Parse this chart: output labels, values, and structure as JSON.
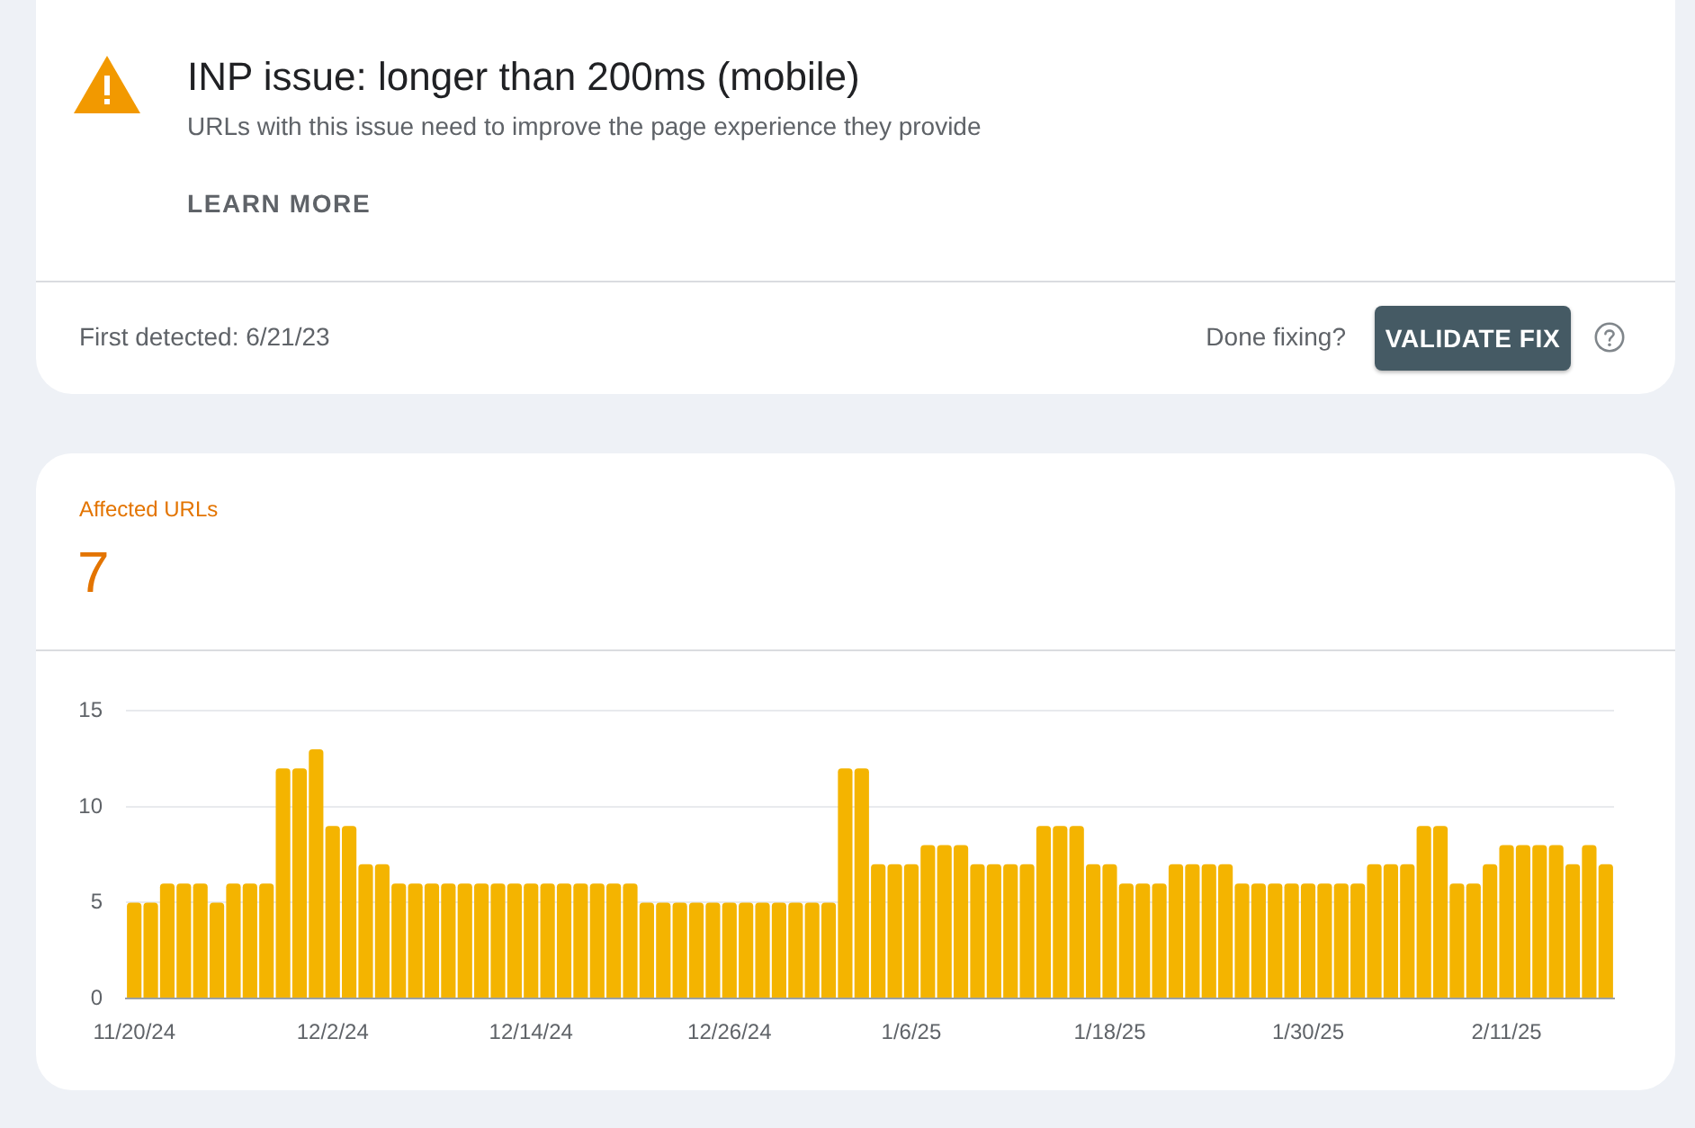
{
  "chart_data": {
    "type": "bar",
    "title": "INP issue: longer than 200ms (mobile)",
    "subtitle": "URLs with this issue need to improve the page experience they provide",
    "categories": [
      "11/20/24",
      null,
      null,
      null,
      null,
      null,
      null,
      null,
      null,
      null,
      null,
      null,
      "12/2/24",
      null,
      null,
      null,
      null,
      null,
      null,
      null,
      null,
      null,
      null,
      null,
      "12/14/24",
      null,
      null,
      null,
      null,
      null,
      null,
      null,
      null,
      null,
      null,
      null,
      "12/26/24",
      null,
      null,
      null,
      null,
      null,
      null,
      null,
      null,
      null,
      null,
      "1/6/25",
      null,
      null,
      null,
      null,
      null,
      null,
      null,
      null,
      null,
      null,
      null,
      "1/18/25",
      null,
      null,
      null,
      null,
      null,
      null,
      null,
      null,
      null,
      null,
      null,
      "1/30/25",
      null,
      null,
      null,
      null,
      null,
      null,
      null,
      null,
      null,
      null,
      null,
      "2/11/25",
      null,
      null,
      null,
      null,
      null,
      null
    ],
    "values": [
      5,
      5,
      6,
      6,
      6,
      5,
      6,
      6,
      6,
      12,
      12,
      13,
      9,
      9,
      7,
      7,
      6,
      6,
      6,
      6,
      6,
      6,
      6,
      6,
      6,
      6,
      6,
      6,
      6,
      6,
      6,
      5,
      5,
      5,
      5,
      5,
      5,
      5,
      5,
      5,
      5,
      5,
      5,
      12,
      12,
      7,
      7,
      7,
      8,
      8,
      8,
      7,
      7,
      7,
      7,
      9,
      9,
      9,
      7,
      7,
      6,
      6,
      6,
      7,
      7,
      7,
      7,
      6,
      6,
      6,
      6,
      6,
      6,
      6,
      6,
      7,
      7,
      7,
      9,
      9,
      6,
      6,
      7,
      8,
      8,
      8,
      8,
      7,
      8,
      7
    ],
    "color": "#f4b400",
    "ylim": [
      0,
      15
    ],
    "yticks": [
      0,
      5,
      10,
      15
    ],
    "grid": "y",
    "legend": false,
    "annotations": [
      "LEARN MORE",
      "First detected: 6/21/23",
      "Done fixing?",
      "VALIDATE FIX",
      "Affected URLs",
      "7"
    ]
  }
}
